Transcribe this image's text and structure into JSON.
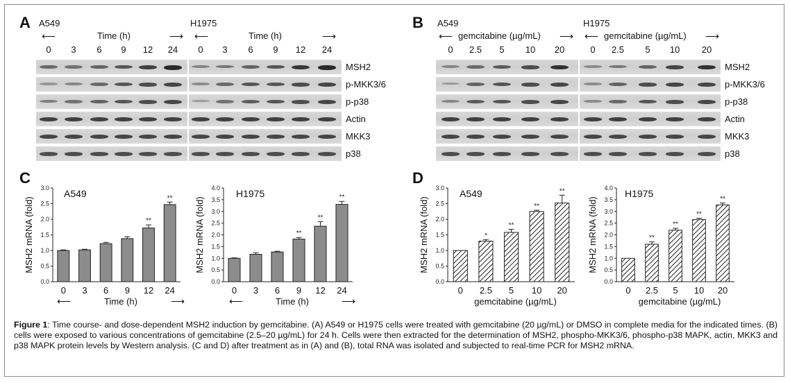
{
  "panels": {
    "A": {
      "label": "A",
      "left_title": "A549",
      "right_title": "H1975",
      "axis_label": "Time (h)",
      "lanes": [
        "0",
        "3",
        "6",
        "9",
        "12",
        "24"
      ],
      "rows": [
        "MSH2",
        "p-MKK3/6",
        "p-p38",
        "Actin",
        "MKK3",
        "p38"
      ],
      "intensity": {
        "MSH2": [
          [
            0.55,
            0.5,
            0.6,
            0.7,
            0.85,
            1.0
          ],
          [
            0.35,
            0.45,
            0.6,
            0.7,
            0.9,
            1.0
          ]
        ],
        "p-MKK3/6": [
          [
            0.25,
            0.35,
            0.55,
            0.7,
            0.75,
            0.8
          ],
          [
            0.3,
            0.55,
            0.7,
            0.7,
            0.75,
            0.8
          ]
        ],
        "p-p38": [
          [
            0.4,
            0.5,
            0.6,
            0.7,
            0.75,
            0.8
          ],
          [
            0.2,
            0.5,
            0.65,
            0.7,
            0.75,
            0.8
          ]
        ],
        "Actin": [
          [
            0.85,
            0.85,
            0.85,
            0.85,
            0.85,
            0.85
          ],
          [
            0.85,
            0.85,
            0.85,
            0.85,
            0.85,
            0.85
          ]
        ],
        "MKK3": [
          [
            0.8,
            0.8,
            0.8,
            0.8,
            0.8,
            0.8
          ],
          [
            0.8,
            0.8,
            0.8,
            0.8,
            0.8,
            0.8
          ]
        ],
        "p38": [
          [
            0.75,
            0.75,
            0.75,
            0.75,
            0.75,
            0.75
          ],
          [
            0.75,
            0.75,
            0.75,
            0.75,
            0.75,
            0.75
          ]
        ]
      }
    },
    "B": {
      "label": "B",
      "left_title": "A549",
      "right_title": "H1975",
      "axis_label": "gemcitabine (µg/mL)",
      "lanes": [
        "0",
        "2.5",
        "5",
        "10",
        "20"
      ],
      "rows": [
        "MSH2",
        "p-MKK3/6",
        "p-p38",
        "Actin",
        "MKK3",
        "p38"
      ],
      "intensity": {
        "MSH2": [
          [
            0.35,
            0.55,
            0.65,
            0.75,
            0.95
          ],
          [
            0.3,
            0.45,
            0.6,
            0.8,
            0.95
          ]
        ],
        "p-MKK3/6": [
          [
            0.2,
            0.6,
            0.7,
            0.75,
            0.8
          ],
          [
            0.3,
            0.6,
            0.75,
            0.8,
            0.8
          ]
        ],
        "p-p38": [
          [
            0.35,
            0.65,
            0.7,
            0.75,
            0.8
          ],
          [
            0.3,
            0.55,
            0.7,
            0.75,
            0.8
          ]
        ],
        "Actin": [
          [
            0.85,
            0.85,
            0.85,
            0.85,
            0.85
          ],
          [
            0.85,
            0.85,
            0.85,
            0.85,
            0.85
          ]
        ],
        "MKK3": [
          [
            0.8,
            0.8,
            0.8,
            0.8,
            0.8
          ],
          [
            0.8,
            0.8,
            0.8,
            0.8,
            0.8
          ]
        ],
        "p38": [
          [
            0.75,
            0.75,
            0.75,
            0.75,
            0.75
          ],
          [
            0.75,
            0.75,
            0.75,
            0.75,
            0.75
          ]
        ]
      }
    },
    "C": {
      "label": "C"
    },
    "D": {
      "label": "D"
    }
  },
  "chart_data": [
    {
      "type": "bar",
      "title": "A549",
      "ylabel": "MSH2 mRNA (fold)",
      "xlabel": "Time (h)",
      "categories": [
        "0",
        "3",
        "6",
        "9",
        "12",
        "24"
      ],
      "values": [
        1.0,
        1.02,
        1.22,
        1.38,
        1.72,
        2.47
      ],
      "errors": [
        0.02,
        0.02,
        0.04,
        0.06,
        0.1,
        0.08
      ],
      "significance": [
        "",
        "",
        "",
        "",
        "**",
        "**"
      ],
      "ylim": [
        0,
        3.0
      ],
      "yticks": [
        "0.0",
        "0.5",
        "1.0",
        "1.5",
        "2.0",
        "2.5",
        "3.0"
      ],
      "fill": "solid"
    },
    {
      "type": "bar",
      "title": "H1975",
      "ylabel": "MSH2 mRNA (fold)",
      "xlabel": "Time (h)",
      "categories": [
        "0",
        "3",
        "6",
        "9",
        "12",
        "24"
      ],
      "values": [
        1.0,
        1.17,
        1.27,
        1.82,
        2.37,
        3.3
      ],
      "errors": [
        0.02,
        0.07,
        0.03,
        0.07,
        0.2,
        0.13
      ],
      "significance": [
        "",
        "",
        "",
        "**",
        "**",
        "**"
      ],
      "ylim": [
        0,
        4.0
      ],
      "yticks": [
        "0.0",
        "0.5",
        "1.0",
        "1.5",
        "2.0",
        "2.5",
        "3.0",
        "3.5",
        "4.0"
      ],
      "fill": "solid"
    },
    {
      "type": "bar",
      "title": "A549",
      "ylabel": "MSH2 mRNA (fold)",
      "xlabel": "gemcitabine (µg/mL)",
      "categories": [
        "0",
        "2.5",
        "5",
        "10",
        "20"
      ],
      "values": [
        1.0,
        1.3,
        1.58,
        2.25,
        2.52
      ],
      "errors": [
        0.01,
        0.05,
        0.1,
        0.04,
        0.25
      ],
      "significance": [
        "",
        "*",
        "**",
        "**",
        "**"
      ],
      "ylim": [
        0,
        3.0
      ],
      "yticks": [
        "0.0",
        "0.5",
        "1.0",
        "1.5",
        "2.0",
        "2.5",
        "3.0"
      ],
      "fill": "hatched"
    },
    {
      "type": "bar",
      "title": "H1975",
      "ylabel": "MSH2 mRNA (fold)",
      "xlabel": "gemcitabine (µg/mL)",
      "categories": [
        "0",
        "2.5",
        "5",
        "10",
        "20"
      ],
      "values": [
        1.0,
        1.6,
        2.2,
        2.65,
        3.28
      ],
      "errors": [
        0.01,
        0.1,
        0.08,
        0.06,
        0.08
      ],
      "significance": [
        "",
        "**",
        "**",
        "**",
        "**"
      ],
      "ylim": [
        0,
        4.0
      ],
      "yticks": [
        "0.0",
        "0.5",
        "1.0",
        "1.5",
        "2.0",
        "2.5",
        "3.0",
        "3.5",
        "4.0"
      ],
      "fill": "hatched"
    }
  ],
  "caption": {
    "bold": "Figure 1",
    "text": ": Time course- and dose-dependent MSH2 induction by gemcitabine. (A) A549 or H1975 cells were treated with gemcitabine (20 µg/mL) or DMSO in complete media for the indicated times. (B) cells were exposed to various concentrations of gemcitabine (2.5–20 µg/mL) for 24 h. Cells were then extracted for the determination of MSH2, phospho-MKK3/6, phospho-p38 MAPK, actin, MKK3 and p38 MAPK protein levels by Western analysis. (C and D) after treatment as in (A) and (B), total RNA was isolated and subjected to real-time PCR for MSH2 mRNA."
  }
}
